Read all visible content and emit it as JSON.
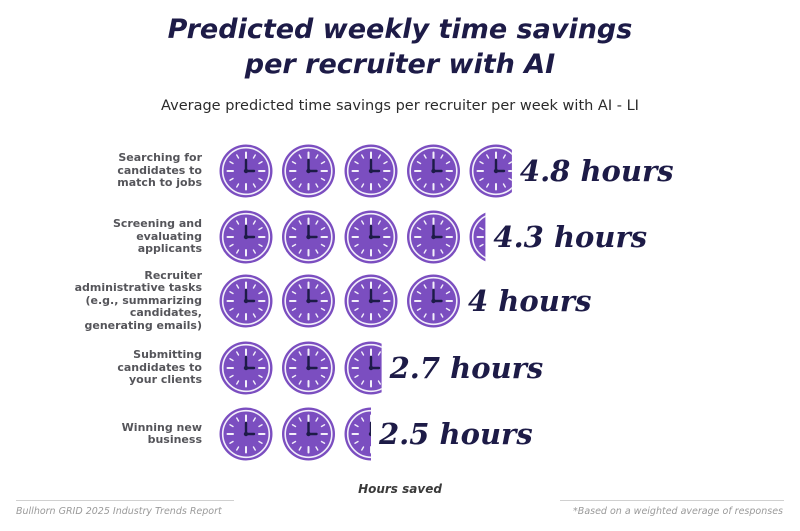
{
  "header": {
    "title_line1": "Predicted weekly time savings",
    "title_line2": "per recruiter with AI",
    "subtitle": "Average predicted time savings per recruiter per week with AI - LI"
  },
  "chart_data": {
    "type": "bar",
    "title": "Predicted weekly time savings per recruiter with AI",
    "subtitle": "Average predicted time savings per recruiter per week with AI - LI",
    "xlabel": "Hours saved",
    "ylabel": "",
    "unit": "hours",
    "icon": "clock-icon",
    "categories": [
      [
        "Searching for",
        "candidates to",
        "match to jobs"
      ],
      [
        "Screening and",
        "evaluating",
        "applicants"
      ],
      [
        "Recruiter",
        "administrative tasks",
        "(e.g., summarizing",
        "candidates,",
        "generating emails)"
      ],
      [
        "Submitting",
        "candidates to",
        "your clients"
      ],
      [
        "Winning new",
        "business"
      ]
    ],
    "values": [
      4.8,
      4.3,
      4,
      2.7,
      2.5
    ],
    "value_labels": [
      "4.8 hours",
      "4.3 hours",
      "4 hours",
      "2.7 hours",
      "2.5 hours"
    ]
  },
  "footer": {
    "source": "Bullhorn GRID 2025 Industry Trends Report",
    "note": "*Based on a weighted average of responses"
  },
  "colors": {
    "icon_fill": "#7b4ec0",
    "icon_ring": "#f2effa",
    "hands": "#1d1b47",
    "title": "#1d1b47"
  }
}
